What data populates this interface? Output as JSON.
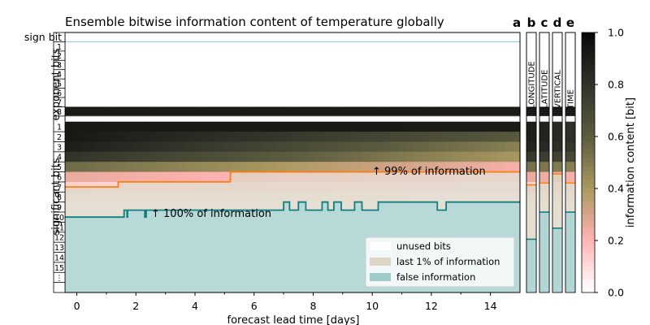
{
  "chart_data": {
    "type": "heatmap",
    "title": "Ensemble bitwise information content of temperature globally",
    "xlabel": "forecast lead time [days]",
    "x_ticks": [
      0,
      2,
      4,
      6,
      8,
      10,
      12,
      14
    ],
    "xlim": [
      -0.4,
      15
    ],
    "ylabels": {
      "exponent": "exponent bits",
      "significant": "significant bits"
    },
    "rows": {
      "sign": "sign bit",
      "exponent": [
        "1",
        "2",
        "3",
        "4",
        "5",
        "6",
        "7",
        "8"
      ],
      "significant": [
        "1",
        "2",
        "3",
        "4",
        "5",
        "6",
        "7",
        "8",
        "9",
        "10",
        "11",
        "12",
        "13",
        "14",
        "15",
        "⋮"
      ]
    },
    "heatmap_profile": {
      "description_rows": "information content per significant bit at lead 0 and at lead 15",
      "exp8": [
        0.92,
        0.92
      ],
      "sig_lead0": [
        0.93,
        0.93,
        0.9,
        0.8,
        0.55,
        0.25,
        0.12,
        0.05
      ],
      "sig_lead15": [
        0.92,
        0.62,
        0.48,
        0.4,
        0.22,
        0.1,
        0.05,
        0.02
      ]
    },
    "line_99pct": {
      "label": "↑ 99% of information",
      "color": "#ff7f0e",
      "steps": [
        [
          -0.4,
          7.5
        ],
        [
          1.4,
          7.5
        ],
        [
          1.4,
          7.0
        ],
        [
          5.2,
          7.0
        ],
        [
          5.2,
          6.0
        ],
        [
          15,
          6.0
        ]
      ]
    },
    "line_100pct": {
      "label": "↑ 100% of information",
      "color": "#137f7f",
      "steps": [
        [
          -0.4,
          10.5
        ],
        [
          1.6,
          10.5
        ],
        [
          1.6,
          9.8
        ],
        [
          1.7,
          9.8
        ],
        [
          1.7,
          10.5
        ],
        [
          1.72,
          10.5
        ],
        [
          1.72,
          9.8
        ],
        [
          2.3,
          9.8
        ],
        [
          2.3,
          10.5
        ],
        [
          2.35,
          10.5
        ],
        [
          2.35,
          9.8
        ],
        [
          7.0,
          9.8
        ],
        [
          7.0,
          9.0
        ],
        [
          7.2,
          9.0
        ],
        [
          7.2,
          9.8
        ],
        [
          7.5,
          9.8
        ],
        [
          7.5,
          9.0
        ],
        [
          7.75,
          9.0
        ],
        [
          7.75,
          9.8
        ],
        [
          8.3,
          9.8
        ],
        [
          8.3,
          9.0
        ],
        [
          8.5,
          9.0
        ],
        [
          8.5,
          9.8
        ],
        [
          8.7,
          9.8
        ],
        [
          8.7,
          9.0
        ],
        [
          8.95,
          9.0
        ],
        [
          8.95,
          9.8
        ],
        [
          9.4,
          9.8
        ],
        [
          9.4,
          9.0
        ],
        [
          9.65,
          9.0
        ],
        [
          9.65,
          9.8
        ],
        [
          10.2,
          9.8
        ],
        [
          10.2,
          9.0
        ],
        [
          12.2,
          9.0
        ],
        [
          12.2,
          9.8
        ],
        [
          12.5,
          9.8
        ],
        [
          12.5,
          9.0
        ],
        [
          15,
          9.0
        ]
      ]
    },
    "legend": {
      "placement": "lower-right",
      "items": [
        {
          "label": "unused bits",
          "color": "#ffffff"
        },
        {
          "label": "last 1% of information",
          "color": "#ddd6c6"
        },
        {
          "label": "false information",
          "color": "#9fcccb"
        }
      ]
    },
    "panels": [
      {
        "letter": "a",
        "label": ""
      },
      {
        "letter": "b",
        "label": "LONGITUDE",
        "line_99": 7.3,
        "line_100": 12.7
      },
      {
        "letter": "c",
        "label": "LATITUDE",
        "line_99": 7.1,
        "line_100": 10.0
      },
      {
        "letter": "d",
        "label": "VERTICAL",
        "line_99": 6.2,
        "line_100": 11.6
      },
      {
        "letter": "e",
        "label": "TIME",
        "line_99": 7.1,
        "line_100": 10.0
      }
    ],
    "colorbar": {
      "label": "information content [bit]",
      "ticks": [
        0.0,
        0.2,
        0.4,
        0.6,
        0.8,
        1.0
      ],
      "range": [
        0,
        1
      ]
    }
  }
}
